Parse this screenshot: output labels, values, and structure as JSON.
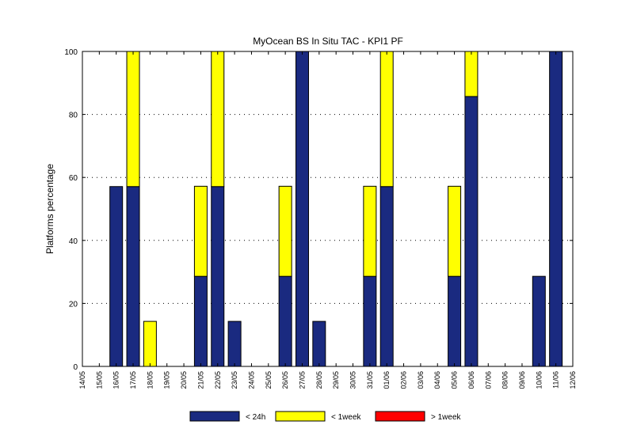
{
  "chart_data": {
    "type": "bar",
    "stacked": true,
    "title": "MyOcean  BS In Situ TAC - KPI1  PF",
    "xlabel": "",
    "ylabel": "Platforms percentage",
    "ylim": [
      0,
      100
    ],
    "yticks": [
      0,
      20,
      40,
      60,
      80,
      100
    ],
    "grid": true,
    "legend_position": "bottom",
    "categories": [
      "14/05",
      "15/05",
      "16/05",
      "17/05",
      "18/05",
      "19/05",
      "20/05",
      "21/05",
      "22/05",
      "23/05",
      "24/05",
      "25/05",
      "26/05",
      "27/05",
      "28/05",
      "29/05",
      "30/05",
      "31/05",
      "01/06",
      "02/06",
      "03/06",
      "04/06",
      "05/06",
      "06/06",
      "07/06",
      "08/06",
      "09/06",
      "10/06",
      "11/06",
      "12/06"
    ],
    "series": [
      {
        "name": "< 24h",
        "color": "#1a2a80",
        "values": [
          0,
          0,
          57.1,
          57.1,
          0,
          0,
          0,
          28.6,
          57.1,
          14.3,
          0,
          0,
          28.6,
          100,
          14.3,
          0,
          0,
          28.6,
          57.1,
          0,
          0,
          0,
          28.6,
          85.7,
          0,
          0,
          0,
          28.6,
          100,
          0
        ]
      },
      {
        "name": "< 1week",
        "color": "#ffff00",
        "values": [
          0,
          0,
          0,
          42.9,
          14.3,
          0,
          0,
          28.6,
          42.9,
          0,
          0,
          0,
          28.6,
          0,
          0,
          0,
          0,
          28.6,
          42.9,
          0,
          0,
          0,
          28.6,
          14.3,
          0,
          0,
          0,
          0,
          0,
          0
        ]
      },
      {
        "name": "> 1week",
        "color": "#ff0000",
        "values": [
          0,
          0,
          0,
          0,
          0,
          0,
          0,
          0,
          0,
          0,
          0,
          0,
          0,
          0,
          0,
          0,
          0,
          0,
          0,
          0,
          0,
          0,
          0,
          0,
          0,
          0,
          0,
          0,
          0,
          0
        ]
      }
    ]
  }
}
